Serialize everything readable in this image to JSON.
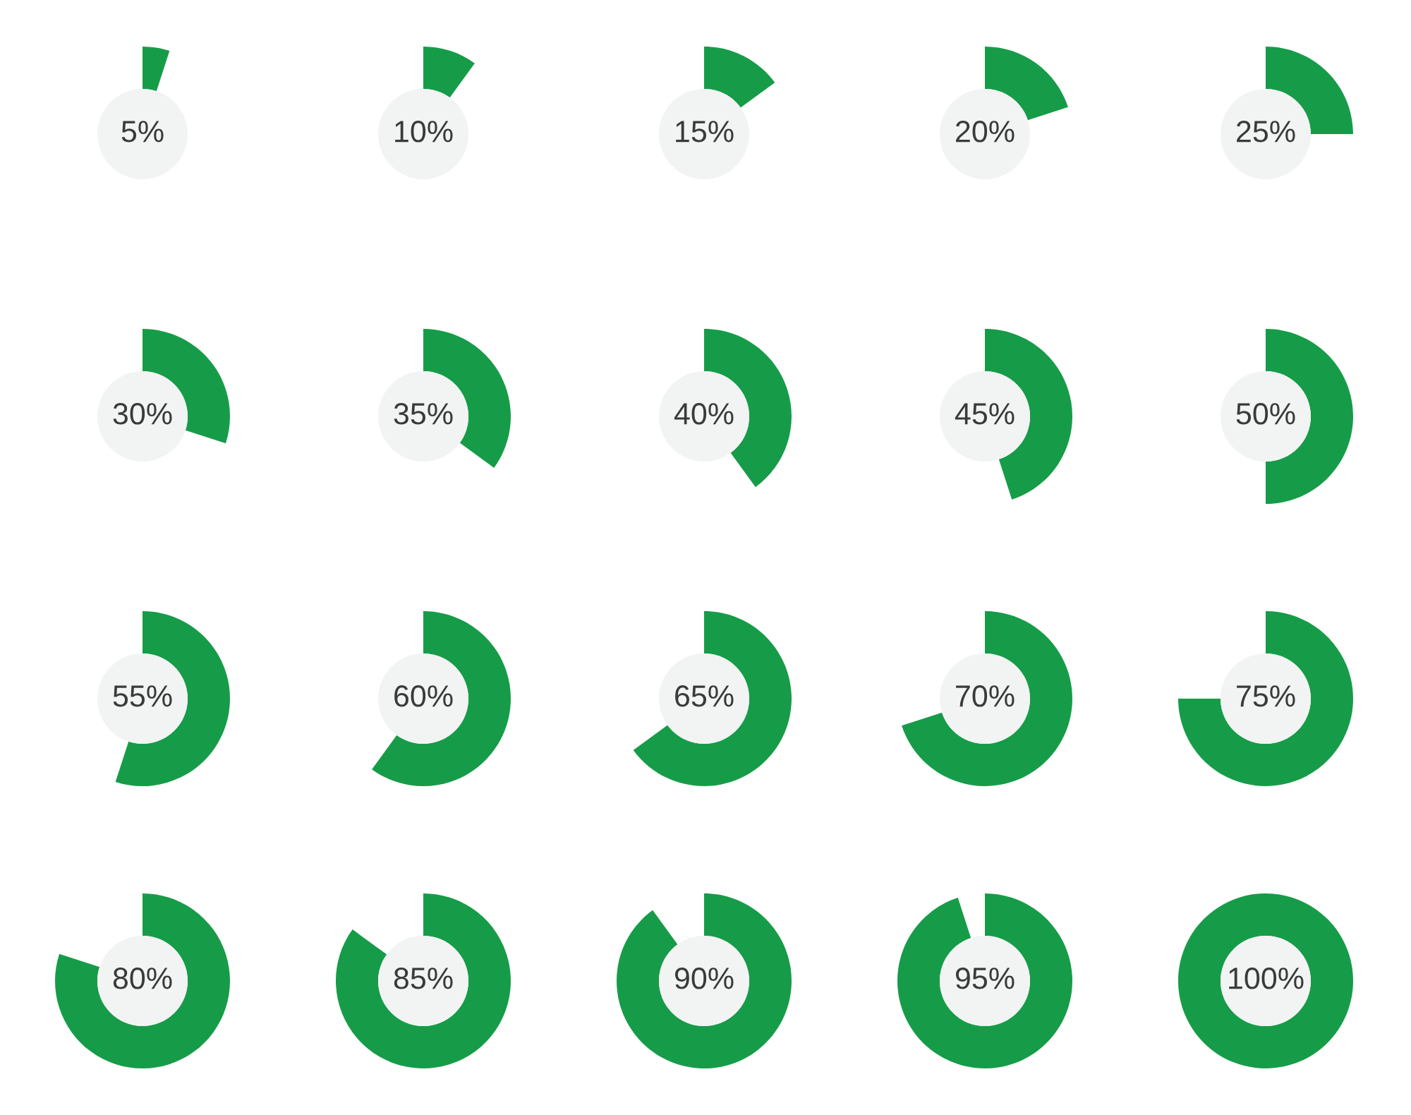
{
  "chart_data": [
    {
      "type": "donut",
      "categories": [
        null
      ],
      "values": [
        5
      ],
      "colors": [
        "#169c48"
      ],
      "value_labels": [
        "5%"
      ]
    },
    {
      "type": "donut",
      "categories": [
        null
      ],
      "values": [
        10
      ],
      "colors": [
        "#169c48"
      ],
      "value_labels": [
        "10%"
      ]
    },
    {
      "type": "donut",
      "categories": [
        null
      ],
      "values": [
        15
      ],
      "colors": [
        "#169c48"
      ],
      "value_labels": [
        "15%"
      ]
    },
    {
      "type": "donut",
      "categories": [
        null
      ],
      "values": [
        20
      ],
      "colors": [
        "#169c48"
      ],
      "value_labels": [
        "20%"
      ]
    },
    {
      "type": "donut",
      "categories": [
        null
      ],
      "values": [
        25
      ],
      "colors": [
        "#169c48"
      ],
      "value_labels": [
        "25%"
      ]
    },
    {
      "type": "donut",
      "categories": [
        null
      ],
      "values": [
        30
      ],
      "colors": [
        "#169c48"
      ],
      "value_labels": [
        "30%"
      ]
    },
    {
      "type": "donut",
      "categories": [
        null
      ],
      "values": [
        35
      ],
      "colors": [
        "#169c48"
      ],
      "value_labels": [
        "35%"
      ]
    },
    {
      "type": "donut",
      "categories": [
        null
      ],
      "values": [
        40
      ],
      "colors": [
        "#169c48"
      ],
      "value_labels": [
        "40%"
      ]
    },
    {
      "type": "donut",
      "categories": [
        null
      ],
      "values": [
        45
      ],
      "colors": [
        "#169c48"
      ],
      "value_labels": [
        "45%"
      ]
    },
    {
      "type": "donut",
      "categories": [
        null
      ],
      "values": [
        50
      ],
      "colors": [
        "#169c48"
      ],
      "value_labels": [
        "50%"
      ]
    },
    {
      "type": "donut",
      "categories": [
        null
      ],
      "values": [
        55
      ],
      "colors": [
        "#169c48"
      ],
      "value_labels": [
        "55%"
      ]
    },
    {
      "type": "donut",
      "categories": [
        null
      ],
      "values": [
        60
      ],
      "colors": [
        "#169c48"
      ],
      "value_labels": [
        "60%"
      ]
    },
    {
      "type": "donut",
      "categories": [
        null
      ],
      "values": [
        65
      ],
      "colors": [
        "#169c48"
      ],
      "value_labels": [
        "65%"
      ]
    },
    {
      "type": "donut",
      "categories": [
        null
      ],
      "values": [
        70
      ],
      "colors": [
        "#169c48"
      ],
      "value_labels": [
        "70%"
      ]
    },
    {
      "type": "donut",
      "categories": [
        null
      ],
      "values": [
        75
      ],
      "colors": [
        "#169c48"
      ],
      "value_labels": [
        "75%"
      ]
    },
    {
      "type": "donut",
      "categories": [
        null
      ],
      "values": [
        80
      ],
      "colors": [
        "#169c48"
      ],
      "value_labels": [
        "80%"
      ]
    },
    {
      "type": "donut",
      "categories": [
        null
      ],
      "values": [
        85
      ],
      "colors": [
        "#169c48"
      ],
      "value_labels": [
        "85%"
      ]
    },
    {
      "type": "donut",
      "categories": [
        null
      ],
      "values": [
        90
      ],
      "colors": [
        "#169c48"
      ],
      "value_labels": [
        "90%"
      ]
    },
    {
      "type": "donut",
      "categories": [
        null
      ],
      "values": [
        95
      ],
      "colors": [
        "#169c48"
      ],
      "value_labels": [
        "95%"
      ]
    },
    {
      "type": "donut",
      "categories": [
        null
      ],
      "values": [
        100
      ],
      "colors": [
        "#169c48"
      ],
      "value_labels": [
        "100%"
      ]
    }
  ]
}
